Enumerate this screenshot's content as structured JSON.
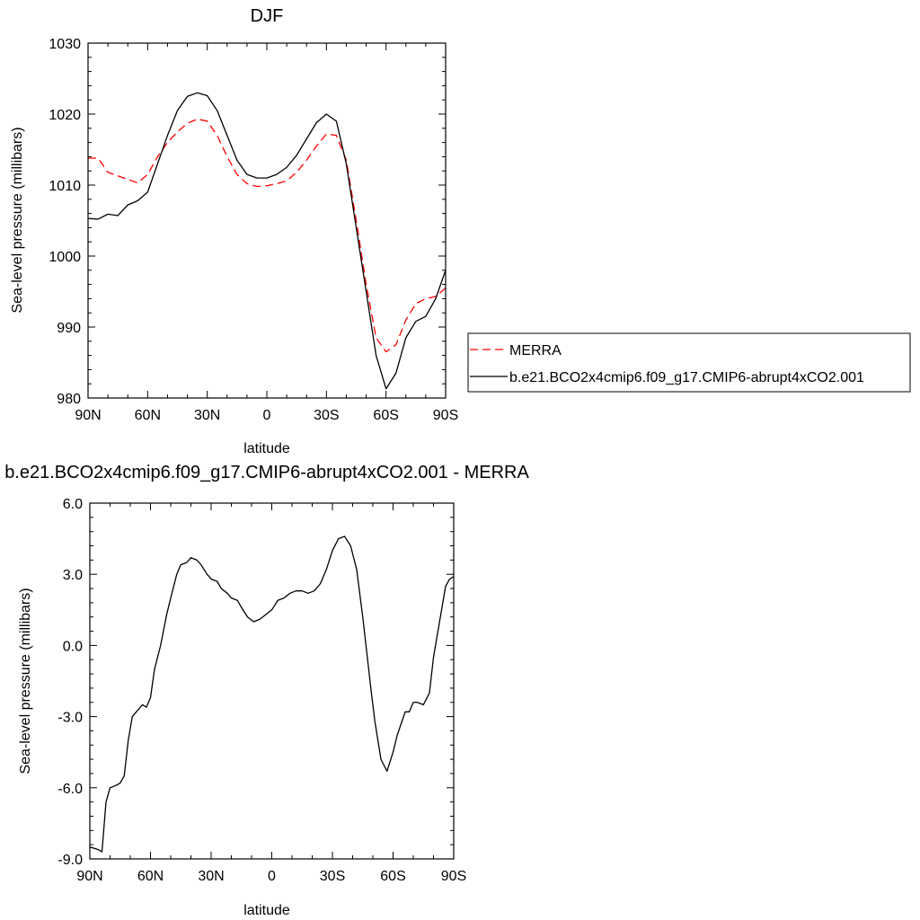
{
  "chart_data": [
    {
      "type": "line",
      "title": "DJF",
      "xlabel": "latitude",
      "ylabel": "Sea-level pressure (millibars)",
      "x_ticks": [
        90,
        60,
        30,
        0,
        -30,
        -60,
        -90
      ],
      "x_tick_labels": [
        "90N",
        "60N",
        "30N",
        "0",
        "30S",
        "60S",
        "90S"
      ],
      "xlim": [
        90,
        -90
      ],
      "ylim": [
        980,
        1030
      ],
      "y_ticks": [
        980,
        990,
        1000,
        1010,
        1020,
        1030
      ],
      "y_tick_labels": [
        "980",
        "990",
        "1000",
        "1010",
        "1020",
        "1030"
      ],
      "grid": false,
      "legend_position": "right",
      "series": [
        {
          "name": "MERRA",
          "color": "#ff0000",
          "dash": "dashed",
          "x": [
            90,
            85,
            80,
            75,
            70,
            65,
            60,
            55,
            50,
            45,
            40,
            35,
            30,
            25,
            20,
            15,
            10,
            5,
            0,
            -5,
            -10,
            -15,
            -20,
            -25,
            -30,
            -35,
            -40,
            -45,
            -50,
            -55,
            -60,
            -65,
            -70,
            -75,
            -80,
            -85,
            -90
          ],
          "values": [
            1013.8,
            1013.8,
            1011.8,
            1011.3,
            1010.8,
            1010.3,
            1011.5,
            1014.0,
            1016.0,
            1017.5,
            1018.7,
            1019.3,
            1019.0,
            1017.0,
            1014.0,
            1011.5,
            1010.2,
            1009.8,
            1009.9,
            1010.2,
            1010.6,
            1011.8,
            1013.5,
            1015.5,
            1017.2,
            1017.0,
            1013.5,
            1005.0,
            996.0,
            988.5,
            986.5,
            987.5,
            991.0,
            993.3,
            994.0,
            994.3,
            995.5
          ]
        },
        {
          "name": "b.e21.BCO2x4cmip6.f09_g17.CMIP6-abrupt4xCO2.001",
          "color": "#000000",
          "dash": "solid",
          "x": [
            90,
            85,
            80,
            75,
            70,
            65,
            60,
            55,
            50,
            45,
            40,
            35,
            30,
            25,
            20,
            15,
            10,
            5,
            0,
            -5,
            -10,
            -15,
            -20,
            -25,
            -30,
            -35,
            -40,
            -45,
            -50,
            -55,
            -60,
            -65,
            -70,
            -75,
            -80,
            -85,
            -90
          ],
          "values": [
            1005.3,
            1005.2,
            1005.9,
            1005.7,
            1007.2,
            1007.8,
            1009.0,
            1013.0,
            1017.0,
            1020.5,
            1022.5,
            1023.0,
            1022.6,
            1020.5,
            1017.0,
            1013.5,
            1011.5,
            1011.0,
            1011.0,
            1011.5,
            1012.5,
            1014.2,
            1016.5,
            1018.8,
            1020.0,
            1019.0,
            1013.0,
            1004.0,
            995.0,
            986.0,
            981.3,
            983.5,
            988.5,
            990.8,
            991.5,
            994.0,
            998.0
          ]
        }
      ]
    },
    {
      "type": "line",
      "title": "b.e21.BCO2x4cmip6.f09_g17.CMIP6-abrupt4xCO2.001 - MERRA",
      "xlabel": "latitude",
      "ylabel": "Sea-level pressure (millibars)",
      "x_ticks": [
        90,
        60,
        30,
        0,
        -30,
        -60,
        -90
      ],
      "x_tick_labels": [
        "90N",
        "60N",
        "30N",
        "0",
        "30S",
        "60S",
        "90S"
      ],
      "xlim": [
        90,
        -90
      ],
      "ylim": [
        -9,
        6
      ],
      "y_ticks": [
        -9,
        -6,
        -3,
        0,
        3,
        6
      ],
      "y_tick_labels": [
        "-9.0",
        "-6.0",
        "-3.0",
        "0.0",
        "3.0",
        "6.0"
      ],
      "grid": false,
      "series": [
        {
          "color": "#000000",
          "dash": "solid",
          "x": [
            90,
            86,
            84,
            82,
            80,
            77,
            75,
            73,
            71,
            69,
            66,
            64,
            62,
            60,
            58,
            55,
            52,
            50,
            47,
            45,
            42,
            40,
            37,
            35,
            32,
            30,
            27,
            25,
            22,
            20,
            17,
            15,
            12,
            9,
            6,
            3,
            0,
            -3,
            -6,
            -9,
            -12,
            -15,
            -18,
            -21,
            -24,
            -27,
            -30,
            -33,
            -36,
            -39,
            -42,
            -45,
            -47,
            -49,
            -51,
            -54,
            -57,
            -60,
            -62,
            -64,
            -66,
            -68,
            -70,
            -72,
            -75,
            -78,
            -80,
            -83,
            -86,
            -88,
            -90
          ],
          "values": [
            -8.5,
            -8.6,
            -8.7,
            -6.6,
            -6.0,
            -5.9,
            -5.8,
            -5.5,
            -4.0,
            -3.0,
            -2.7,
            -2.5,
            -2.6,
            -2.2,
            -1.0,
            0.0,
            1.3,
            2.0,
            3.0,
            3.4,
            3.5,
            3.7,
            3.6,
            3.4,
            3.0,
            2.8,
            2.7,
            2.4,
            2.2,
            2.0,
            1.9,
            1.6,
            1.2,
            1.0,
            1.1,
            1.3,
            1.5,
            1.9,
            2.0,
            2.2,
            2.3,
            2.3,
            2.2,
            2.3,
            2.6,
            3.2,
            4.0,
            4.5,
            4.6,
            4.2,
            3.2,
            1.2,
            -0.3,
            -1.8,
            -3.2,
            -4.8,
            -5.3,
            -4.5,
            -3.8,
            -3.3,
            -2.8,
            -2.8,
            -2.4,
            -2.4,
            -2.5,
            -2.0,
            -0.5,
            1.0,
            2.5,
            2.8,
            2.9
          ]
        }
      ]
    }
  ]
}
